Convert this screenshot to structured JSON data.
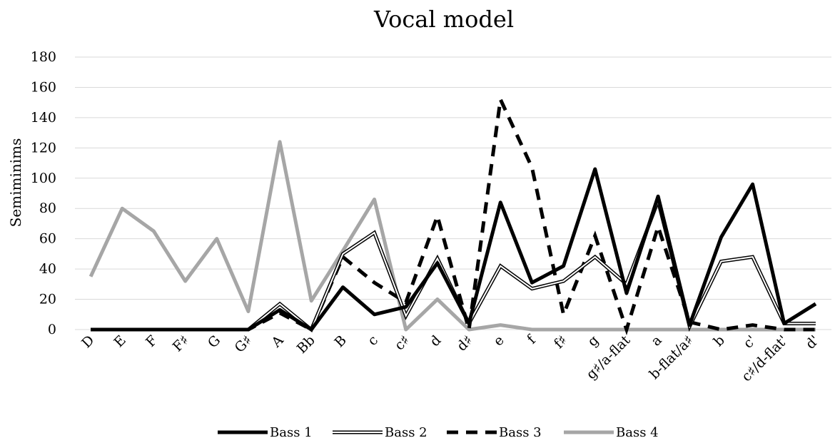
{
  "chart_data": {
    "type": "line",
    "title": "Vocal model",
    "xlabel": "",
    "ylabel": "Semiminims",
    "ylim": [
      0,
      180
    ],
    "yticks": [
      0,
      20,
      40,
      60,
      80,
      100,
      120,
      140,
      160,
      180
    ],
    "grid": true,
    "legend": "bottom",
    "categories": [
      "D",
      "E",
      "F",
      "F♯",
      "G",
      "G♯",
      "A",
      "Bb",
      "B",
      "c",
      "c♯",
      "d",
      "d♯",
      "e",
      "f",
      "f♯",
      "g",
      "g♯/a-flat",
      "a",
      "b-flat/a♯",
      "b",
      "c'",
      "c♯/d-flat'",
      "d'"
    ],
    "series": [
      {
        "name": "Bass 1",
        "style": "solid",
        "color": "#000000",
        "values": [
          0,
          0,
          0,
          0,
          0,
          0,
          13,
          0,
          28,
          10,
          15,
          44,
          4,
          84,
          31,
          42,
          106,
          24,
          88,
          3,
          61,
          96,
          4,
          17
        ]
      },
      {
        "name": "Bass 2",
        "style": "double",
        "color": "#000000",
        "values": [
          0,
          0,
          0,
          0,
          0,
          0,
          17,
          0,
          50,
          64,
          9,
          47,
          4,
          42,
          27,
          32,
          48,
          30,
          85,
          2,
          45,
          48,
          4,
          4
        ]
      },
      {
        "name": "Bass 3",
        "style": "dashed",
        "color": "#000000",
        "values": [
          0,
          0,
          0,
          0,
          0,
          0,
          11,
          0,
          48,
          31,
          18,
          75,
          0,
          152,
          107,
          10,
          62,
          0,
          68,
          5,
          0,
          3,
          0,
          0
        ]
      },
      {
        "name": "Bass 4",
        "style": "solid",
        "color": "#a6a6a6",
        "values": [
          35,
          80,
          65,
          32,
          60,
          12,
          124,
          19,
          52,
          86,
          0,
          20,
          0,
          3,
          0,
          0,
          0,
          0,
          0,
          0,
          0,
          0,
          0,
          0
        ]
      }
    ]
  }
}
